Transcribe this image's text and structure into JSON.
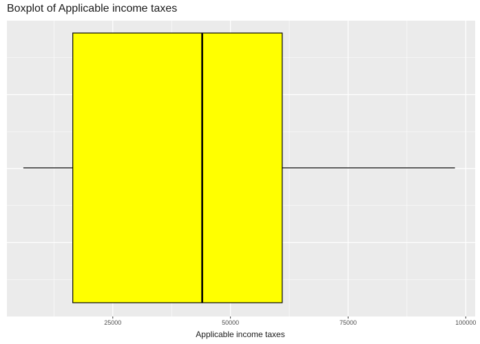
{
  "chart_data": {
    "type": "boxplot",
    "title": "Boxplot of Applicable income taxes",
    "xlabel": "Applicable income taxes",
    "ylabel": "",
    "orientation": "horizontal",
    "xlim": [
      2500,
      102000
    ],
    "x_ticks": [
      25000,
      50000,
      75000,
      100000
    ],
    "x_tick_labels": [
      "25000",
      "50000",
      "75000",
      "100000"
    ],
    "box": {
      "whisker_low": 6000,
      "q1": 16500,
      "median": 44000,
      "q3": 61000,
      "whisker_high": 97700
    },
    "colors": {
      "panel_background": "#ebebeb",
      "grid": "#ffffff",
      "box_fill": "#ffff00",
      "box_outline": "#000000"
    },
    "grid": true,
    "legend": "none"
  }
}
